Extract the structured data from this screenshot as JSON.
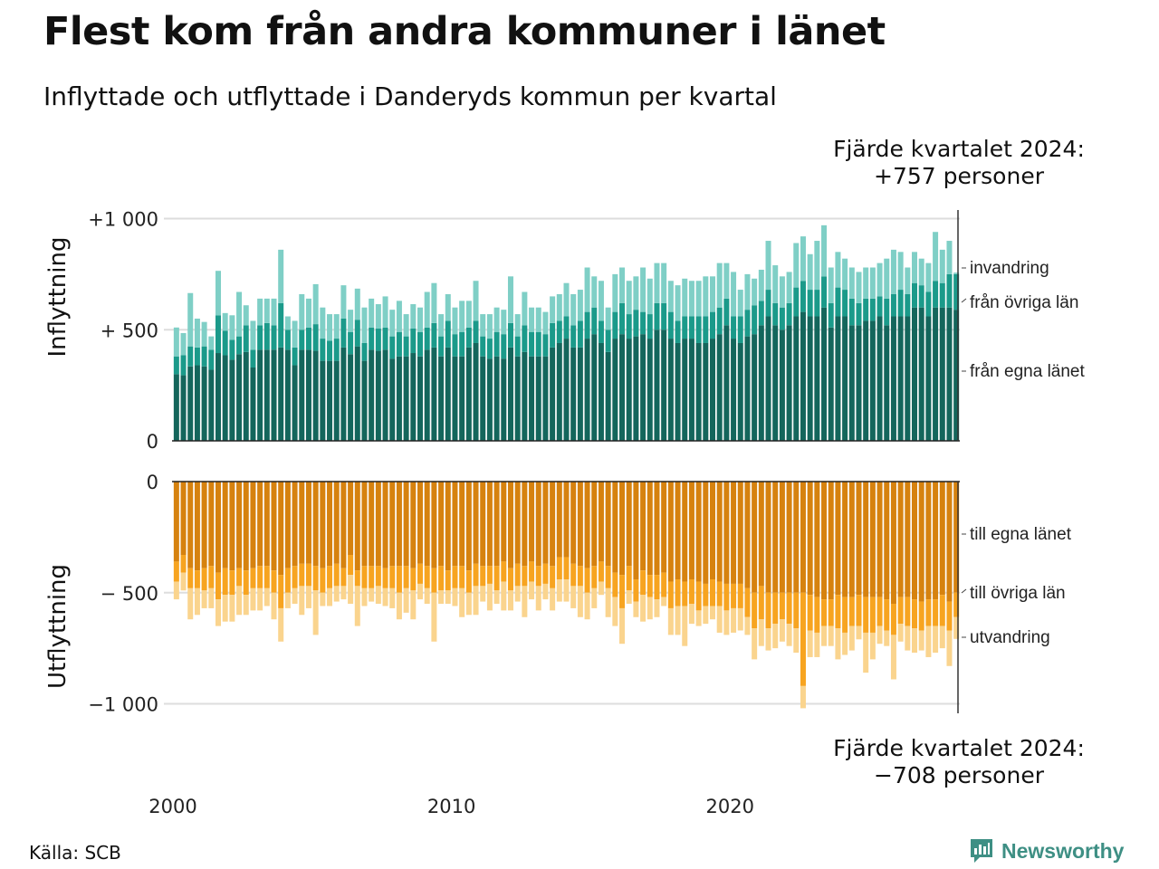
{
  "title": "Flest kom från andra kommuner i länet",
  "subtitle": "Inflyttade och utflyttade i Danderyds kommun per kvartal",
  "annotation_top": {
    "line1": "Fjärde kvartalet 2024:",
    "line2": "+757 personer"
  },
  "annotation_bottom": {
    "line1": "Fjärde kvartalet 2024:",
    "line2": "−708 personer"
  },
  "source": "Källa: SCB",
  "logo": {
    "text": "Newsworthy",
    "icon": "bar-chart-speech-icon"
  },
  "colors": {
    "in_own": "#14665c",
    "in_other": "#1b9a8a",
    "in_immig": "#7fcfc6",
    "out_own": "#d6820f",
    "out_other": "#f7a420",
    "out_emig": "#fad48e",
    "grid": "#dddddd",
    "axis": "#222222"
  },
  "chart_data": [
    {
      "type": "bar",
      "stacked": true,
      "ylabel": "Inflyttning",
      "ylim": [
        0,
        1000
      ],
      "yticks": [
        {
          "value": 1000,
          "label": "+1 000"
        },
        {
          "value": 500,
          "label": "+  500"
        },
        {
          "value": 0,
          "label": "0"
        }
      ],
      "x_start": "2000 Q1",
      "x_end": "2024 Q4",
      "xticks": [
        "2000",
        "2010",
        "2020"
      ],
      "series": [
        {
          "name": "från egna länet",
          "values": [
            300,
            295,
            335,
            340,
            335,
            320,
            395,
            385,
            365,
            390,
            400,
            330,
            410,
            410,
            410,
            420,
            410,
            340,
            410,
            410,
            405,
            360,
            360,
            360,
            420,
            390,
            425,
            360,
            410,
            405,
            410,
            370,
            380,
            380,
            395,
            380,
            410,
            420,
            380,
            420,
            380,
            380,
            420,
            440,
            380,
            370,
            380,
            370,
            420,
            380,
            400,
            380,
            380,
            380,
            420,
            440,
            460,
            420,
            420,
            460,
            480,
            440,
            400,
            460,
            480,
            460,
            470,
            480,
            460,
            500,
            500,
            460,
            440,
            460,
            460,
            440,
            440,
            460,
            480,
            520,
            460,
            440,
            470,
            480,
            520,
            560,
            520,
            500,
            520,
            560,
            580,
            560,
            560,
            600,
            510,
            560,
            560,
            520,
            520,
            540,
            540,
            560,
            520,
            560,
            560,
            560,
            600,
            600,
            560,
            600,
            600,
            600,
            590
          ]
        },
        {
          "name": "från övriga län",
          "values": [
            80,
            90,
            90,
            80,
            90,
            90,
            170,
            110,
            90,
            80,
            120,
            80,
            110,
            120,
            110,
            200,
            90,
            80,
            90,
            100,
            120,
            100,
            90,
            100,
            130,
            100,
            120,
            80,
            100,
            100,
            100,
            100,
            110,
            90,
            110,
            110,
            100,
            110,
            90,
            120,
            100,
            110,
            90,
            100,
            90,
            90,
            110,
            110,
            110,
            90,
            120,
            110,
            110,
            100,
            110,
            100,
            100,
            100,
            120,
            120,
            120,
            100,
            100,
            120,
            140,
            110,
            120,
            100,
            110,
            120,
            120,
            120,
            100,
            100,
            100,
            120,
            120,
            120,
            120,
            120,
            100,
            120,
            120,
            130,
            110,
            120,
            100,
            100,
            100,
            130,
            140,
            120,
            120,
            140,
            110,
            130,
            120,
            120,
            100,
            100,
            100,
            90,
            120,
            100,
            120,
            100,
            110,
            100,
            110,
            120,
            110,
            150,
            160
          ]
        },
        {
          "name": "invandring",
          "values": [
            130,
            100,
            240,
            130,
            110,
            60,
            200,
            80,
            110,
            200,
            90,
            130,
            120,
            110,
            120,
            240,
            60,
            120,
            160,
            130,
            180,
            140,
            120,
            110,
            150,
            100,
            140,
            160,
            130,
            110,
            140,
            120,
            140,
            100,
            110,
            110,
            160,
            180,
            100,
            120,
            120,
            140,
            120,
            180,
            100,
            110,
            110,
            110,
            210,
            100,
            150,
            110,
            110,
            100,
            120,
            120,
            150,
            140,
            140,
            200,
            140,
            180,
            100,
            170,
            160,
            150,
            150,
            200,
            160,
            180,
            180,
            140,
            160,
            170,
            160,
            160,
            180,
            160,
            200,
            160,
            200,
            120,
            160,
            120,
            140,
            220,
            170,
            140,
            140,
            200,
            200,
            160,
            220,
            230,
            160,
            160,
            140,
            140,
            140,
            140,
            140,
            150,
            180,
            200,
            170,
            120,
            140,
            120,
            130,
            220,
            150,
            150,
            7
          ]
        }
      ]
    },
    {
      "type": "bar",
      "stacked": true,
      "ylabel": "Utflyttning",
      "ylim": [
        -1000,
        0
      ],
      "yticks": [
        {
          "value": 0,
          "label": "0"
        },
        {
          "value": -500,
          "label": "−  500"
        },
        {
          "value": -1000,
          "label": "−1 000"
        }
      ],
      "x_start": "2000 Q1",
      "x_end": "2024 Q4",
      "xticks": [
        "2000",
        "2010",
        "2020"
      ],
      "series": [
        {
          "name": "till egna länet",
          "values": [
            -360,
            -330,
            -390,
            -400,
            -390,
            -380,
            -410,
            -390,
            -400,
            -390,
            -400,
            -390,
            -380,
            -380,
            -400,
            -420,
            -390,
            -380,
            -370,
            -370,
            -380,
            -390,
            -380,
            -370,
            -390,
            -330,
            -400,
            -380,
            -380,
            -380,
            -390,
            -380,
            -380,
            -380,
            -390,
            -370,
            -380,
            -390,
            -380,
            -400,
            -380,
            -380,
            -400,
            -370,
            -380,
            -380,
            -380,
            -360,
            -390,
            -370,
            -380,
            -360,
            -380,
            -370,
            -380,
            -340,
            -340,
            -370,
            -380,
            -390,
            -380,
            -360,
            -380,
            -410,
            -420,
            -380,
            -440,
            -400,
            -420,
            -420,
            -410,
            -450,
            -440,
            -450,
            -440,
            -450,
            -460,
            -440,
            -450,
            -460,
            -460,
            -460,
            -480,
            -500,
            -470,
            -500,
            -500,
            -500,
            -500,
            -500,
            -500,
            -510,
            -520,
            -530,
            -530,
            -510,
            -520,
            -520,
            -510,
            -520,
            -520,
            -520,
            -530,
            -550,
            -520,
            -520,
            -530,
            -540,
            -530,
            -530,
            -510,
            -540,
            -500
          ]
        },
        {
          "name": "till övriga län",
          "values": [
            -90,
            -80,
            -90,
            -80,
            -100,
            -100,
            -120,
            -120,
            -110,
            -80,
            -110,
            -90,
            -100,
            -100,
            -100,
            -150,
            -110,
            -100,
            -100,
            -100,
            -110,
            -110,
            -100,
            -100,
            -80,
            -90,
            -70,
            -100,
            -100,
            -90,
            -90,
            -100,
            -120,
            -100,
            -100,
            -90,
            -100,
            -110,
            -110,
            -90,
            -100,
            -100,
            -100,
            -100,
            -90,
            -80,
            -110,
            -90,
            -100,
            -100,
            -90,
            -90,
            -90,
            -90,
            -100,
            -100,
            -100,
            -100,
            -90,
            -110,
            -100,
            -90,
            -100,
            -110,
            -150,
            -110,
            -100,
            -110,
            -100,
            -110,
            -110,
            -120,
            -120,
            -110,
            -110,
            -130,
            -100,
            -120,
            -110,
            -120,
            -110,
            -110,
            -130,
            -160,
            -150,
            -160,
            -140,
            -120,
            -140,
            -160,
            -420,
            -160,
            -160,
            -120,
            -120,
            -150,
            -160,
            -130,
            -140,
            -160,
            -160,
            -130,
            -140,
            -140,
            -120,
            -130,
            -130,
            -130,
            -120,
            -120,
            -140,
            -130,
            -110
          ]
        },
        {
          "name": "utvandring",
          "values": [
            -80,
            -80,
            -140,
            -120,
            -80,
            -90,
            -120,
            -120,
            -120,
            -130,
            -90,
            -100,
            -100,
            -80,
            -120,
            -150,
            -70,
            -70,
            -130,
            -100,
            -200,
            -60,
            -80,
            -70,
            -60,
            -130,
            -180,
            -80,
            -60,
            -80,
            -80,
            -90,
            -120,
            -110,
            -130,
            -70,
            -70,
            -220,
            -60,
            -60,
            -80,
            -130,
            -100,
            -130,
            -70,
            -120,
            -60,
            -130,
            -90,
            -70,
            -140,
            -80,
            -110,
            -70,
            -100,
            -100,
            -100,
            -100,
            -140,
            -120,
            -90,
            -60,
            -130,
            -130,
            -160,
            -60,
            -70,
            -120,
            -100,
            -80,
            -40,
            -120,
            -130,
            -180,
            -90,
            -70,
            -80,
            -60,
            -120,
            -110,
            -110,
            -100,
            -80,
            -140,
            -120,
            -100,
            -110,
            -100,
            -100,
            -110,
            -100,
            -120,
            -110,
            -90,
            -90,
            -140,
            -100,
            -110,
            -60,
            -180,
            -120,
            -80,
            -70,
            -200,
            -80,
            -110,
            -110,
            -90,
            -140,
            -120,
            -100,
            -160,
            -98
          ]
        }
      ]
    }
  ],
  "labels_right": {
    "top": [
      "invandring",
      "från övriga län",
      "från egna länet"
    ],
    "bottom": [
      "till egna länet",
      "till övriga län",
      "utvandring"
    ]
  }
}
